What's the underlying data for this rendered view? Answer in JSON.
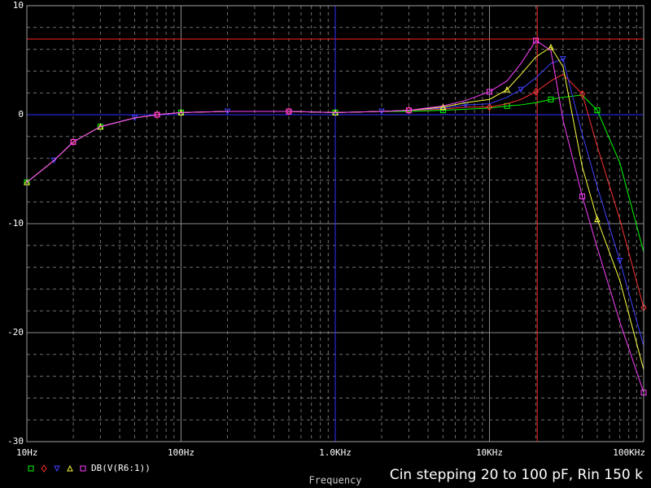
{
  "chart_data": {
    "type": "line",
    "title": "Cin stepping 20 to 100 pF, Rin 150 k",
    "x_label": "Frequency",
    "legend_label": "DB(V(R6:1))",
    "log_x": true,
    "grid": true,
    "xlim": [
      10,
      100000
    ],
    "xticks": [
      {
        "value": 10,
        "label": "10Hz"
      },
      {
        "value": 100,
        "label": "100Hz"
      },
      {
        "value": 1000,
        "label": "1.0KHz"
      },
      {
        "value": 10000,
        "label": "10KHz"
      },
      {
        "value": 100000,
        "label": "100KHz"
      }
    ],
    "ylim": [
      -30,
      10
    ],
    "yticks": [
      -30,
      -20,
      -10,
      0,
      10
    ],
    "x": [
      10,
      15,
      20,
      30,
      50,
      70,
      100,
      200,
      500,
      1000,
      2000,
      3000,
      5000,
      7000,
      10000,
      13000,
      16000,
      20000,
      25000,
      30000,
      40000,
      50000,
      70000,
      100000
    ],
    "series": [
      {
        "color": "#00ff00",
        "marker": "square",
        "values": [
          -6.2,
          -4.2,
          -2.5,
          -1.1,
          -0.3,
          0,
          0.2,
          0.3,
          0.3,
          0.2,
          0.3,
          0.3,
          0.4,
          0.5,
          0.6,
          0.8,
          0.9,
          1.1,
          1.4,
          1.6,
          1.8,
          0.4,
          -4.4,
          -12.6
        ]
      },
      {
        "color": "#ff3030",
        "marker": "diamond",
        "values": [
          -6.2,
          -4.2,
          -2.5,
          -1.1,
          -0.3,
          0,
          0.2,
          0.3,
          0.3,
          0.2,
          0.3,
          0.4,
          0.5,
          0.7,
          0.7,
          1.0,
          1.4,
          2.1,
          3.1,
          3.7,
          1.9,
          -2.9,
          -9.6,
          -17.7
        ]
      },
      {
        "color": "#4040ff",
        "marker": "triangle-down",
        "values": [
          -6.2,
          -4.2,
          -2.5,
          -1.1,
          -0.3,
          0,
          0.2,
          0.3,
          0.3,
          0.2,
          0.3,
          0.4,
          0.6,
          0.9,
          1.0,
          1.6,
          2.3,
          3.4,
          4.7,
          5.1,
          -1.8,
          -6.6,
          -13.4,
          -21.2
        ]
      },
      {
        "color": "#ffff40",
        "marker": "triangle",
        "values": [
          -6.2,
          -4.2,
          -2.5,
          -1.1,
          -0.3,
          0,
          0.2,
          0.3,
          0.3,
          0.2,
          0.3,
          0.4,
          0.7,
          1.1,
          1.4,
          2.3,
          3.7,
          5.3,
          6.2,
          4.4,
          -4.8,
          -9.6,
          -15.2,
          -23.4
        ]
      },
      {
        "color": "#ff40ff",
        "marker": "square",
        "values": [
          -6.2,
          -4.2,
          -2.5,
          -1.1,
          -0.3,
          0,
          0.2,
          0.3,
          0.3,
          0.2,
          0.3,
          0.4,
          0.8,
          1.3,
          2.1,
          3.1,
          4.7,
          6.8,
          5.9,
          -0.5,
          -7.5,
          -12.2,
          -19,
          -25.5
        ]
      }
    ],
    "cursors": [
      {
        "x": 20400,
        "y": 6.94,
        "color": "#ff2020"
      },
      {
        "x": 1000,
        "y": 0,
        "color": "#3030ff"
      }
    ]
  }
}
